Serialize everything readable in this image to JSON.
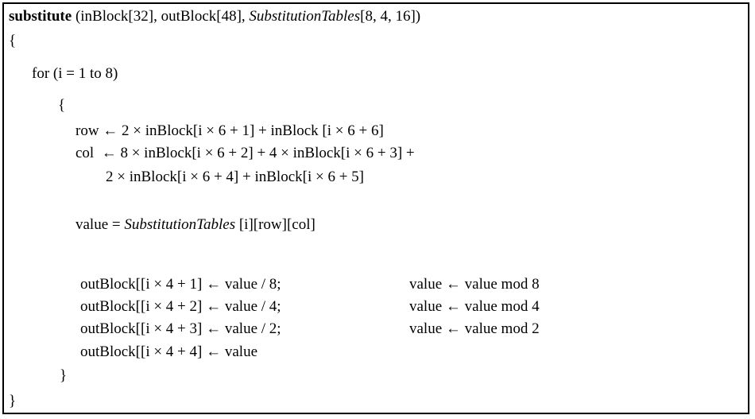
{
  "header": {
    "keyword": "substitute",
    "params_before": " (inBlock[32], outBlock[48], ",
    "param_italic": "SubstitutionTables",
    "params_after": "[8, 4, 16])"
  },
  "open_brace": "{",
  "loop": {
    "for_line": "for (i = 1 to 8)",
    "open_brace": "{",
    "row_line": "row ← 2 × inBlock[i × 6 + 1] + inBlock [i × 6 + 6]",
    "col_line_1": "col  ← 8 × inBlock[i × 6 + 2] + 4 × inBlock[i × 6 + 3] +",
    "col_line_2": "2 × inBlock[i × 6 + 4] + inBlock[i × 6 + 5]",
    "value_prefix": "value = ",
    "value_italic": "SubstitutionTables",
    "value_suffix": " [i][row][col]",
    "out_lines": [
      {
        "left": "outBlock[[i × 4 + 1] ← value / 8;",
        "right": "value ← value mod 8"
      },
      {
        "left": "outBlock[[i × 4 + 2] ← value / 4;",
        "right": "value ← value mod 4"
      },
      {
        "left": "outBlock[[i × 4 + 3] ← value / 2;",
        "right": "value ← value mod 2"
      },
      {
        "left": "outBlock[[i × 4 + 4] ← value",
        "right": ""
      }
    ],
    "close_brace": "}"
  },
  "close_brace": "}"
}
